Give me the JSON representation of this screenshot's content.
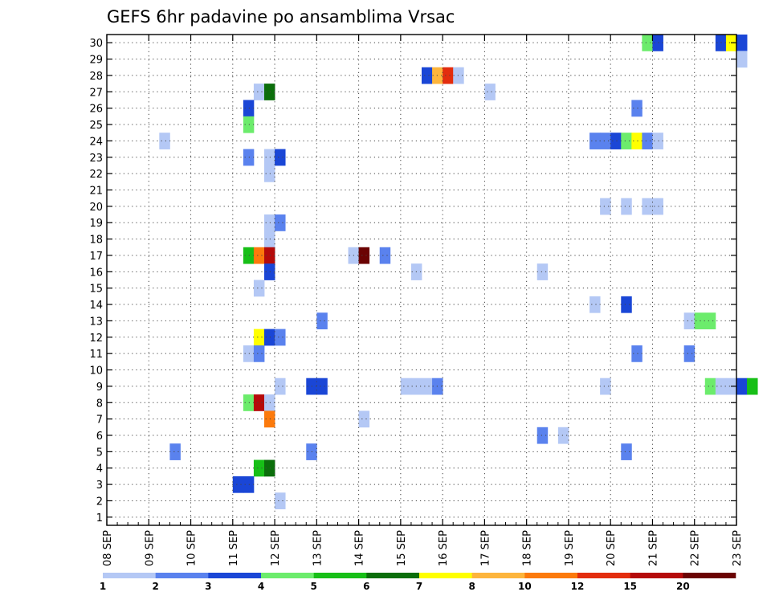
{
  "chart_data": {
    "type": "heatmap",
    "title": "GEFS 6hr padavine po ansamblima Vrsac",
    "xlabel": "",
    "ylabel": "",
    "x_tick_labels": [
      "08 SEP",
      "09 SEP",
      "10 SEP",
      "11 SEP",
      "12 SEP",
      "13 SEP",
      "14 SEP",
      "15 SEP",
      "16 SEP",
      "17 SEP",
      "18 SEP",
      "19 SEP",
      "20 SEP",
      "21 SEP",
      "22 SEP",
      "23 SEP"
    ],
    "y_tick_labels": [
      "1",
      "2",
      "3",
      "4",
      "5",
      "6",
      "7",
      "8",
      "9",
      "10",
      "11",
      "12",
      "13",
      "14",
      "15",
      "16",
      "17",
      "18",
      "19",
      "20",
      "21",
      "22",
      "23",
      "24",
      "25",
      "26",
      "27",
      "28",
      "29",
      "30"
    ],
    "x_range_days": [
      0,
      15
    ],
    "y_range": [
      0,
      30
    ],
    "grid": true,
    "legend_placement": "bottom",
    "color_scale": {
      "labels": [
        "1",
        "2",
        "3",
        "4",
        "5",
        "6",
        "7",
        "8",
        "10",
        "12",
        "15",
        "20"
      ],
      "colors": [
        "#b4c8f5",
        "#5a82ee",
        "#1a46d6",
        "#6cec6c",
        "#17bf17",
        "#0b6e0b",
        "#ffff00",
        "#fdb53c",
        "#fc7a0c",
        "#e32d0e",
        "#b50a0a",
        "#6b0303"
      ]
    },
    "cells": [
      {
        "t": 12.75,
        "m": 30,
        "c": 4
      },
      {
        "t": 13.0,
        "m": 30,
        "c": 3
      },
      {
        "t": 14.5,
        "m": 30,
        "c": 3
      },
      {
        "t": 14.75,
        "m": 30,
        "c": 7
      },
      {
        "t": 15.0,
        "m": 30,
        "c": 3
      },
      {
        "t": 15.0,
        "m": 29,
        "c": 1
      },
      {
        "t": 7.5,
        "m": 28,
        "c": 3
      },
      {
        "t": 7.75,
        "m": 28,
        "c": 8
      },
      {
        "t": 8.0,
        "m": 28,
        "c": 10
      },
      {
        "t": 8.25,
        "m": 28,
        "c": 1
      },
      {
        "t": 3.5,
        "m": 27,
        "c": 1
      },
      {
        "t": 3.75,
        "m": 27,
        "c": 6
      },
      {
        "t": 9.0,
        "m": 27,
        "c": 1
      },
      {
        "t": 3.25,
        "m": 26,
        "c": 3
      },
      {
        "t": 12.5,
        "m": 26,
        "c": 2
      },
      {
        "t": 3.25,
        "m": 25,
        "c": 4
      },
      {
        "t": 1.25,
        "m": 24,
        "c": 1
      },
      {
        "t": 11.5,
        "m": 24,
        "c": 2
      },
      {
        "t": 11.75,
        "m": 24,
        "c": 2
      },
      {
        "t": 12.0,
        "m": 24,
        "c": 3
      },
      {
        "t": 12.25,
        "m": 24,
        "c": 4
      },
      {
        "t": 12.5,
        "m": 24,
        "c": 7
      },
      {
        "t": 12.75,
        "m": 24,
        "c": 2
      },
      {
        "t": 13.0,
        "m": 24,
        "c": 1
      },
      {
        "t": 3.25,
        "m": 23,
        "c": 2
      },
      {
        "t": 3.75,
        "m": 23,
        "c": 1
      },
      {
        "t": 4.0,
        "m": 23,
        "c": 3
      },
      {
        "t": 3.75,
        "m": 22,
        "c": 1
      },
      {
        "t": 11.75,
        "m": 20,
        "c": 1
      },
      {
        "t": 12.25,
        "m": 20,
        "c": 1
      },
      {
        "t": 12.75,
        "m": 20,
        "c": 1
      },
      {
        "t": 13.0,
        "m": 20,
        "c": 1
      },
      {
        "t": 3.75,
        "m": 19,
        "c": 1
      },
      {
        "t": 4.0,
        "m": 19,
        "c": 2
      },
      {
        "t": 3.75,
        "m": 18,
        "c": 1
      },
      {
        "t": 3.25,
        "m": 17,
        "c": 5
      },
      {
        "t": 3.5,
        "m": 17,
        "c": 9
      },
      {
        "t": 3.75,
        "m": 17,
        "c": 11
      },
      {
        "t": 5.75,
        "m": 17,
        "c": 1
      },
      {
        "t": 6.0,
        "m": 17,
        "c": 12
      },
      {
        "t": 6.5,
        "m": 17,
        "c": 2
      },
      {
        "t": 3.75,
        "m": 16,
        "c": 3
      },
      {
        "t": 7.25,
        "m": 16,
        "c": 1
      },
      {
        "t": 10.25,
        "m": 16,
        "c": 1
      },
      {
        "t": 3.5,
        "m": 15,
        "c": 1
      },
      {
        "t": 11.5,
        "m": 14,
        "c": 1
      },
      {
        "t": 12.25,
        "m": 14,
        "c": 3
      },
      {
        "t": 5.0,
        "m": 13,
        "c": 2
      },
      {
        "t": 13.75,
        "m": 13,
        "c": 1
      },
      {
        "t": 14.0,
        "m": 13,
        "c": 4
      },
      {
        "t": 14.25,
        "m": 13,
        "c": 4
      },
      {
        "t": 3.5,
        "m": 12,
        "c": 7
      },
      {
        "t": 3.75,
        "m": 12,
        "c": 3
      },
      {
        "t": 4.0,
        "m": 12,
        "c": 2
      },
      {
        "t": 3.25,
        "m": 11,
        "c": 1
      },
      {
        "t": 3.5,
        "m": 11,
        "c": 2
      },
      {
        "t": 12.5,
        "m": 11,
        "c": 2
      },
      {
        "t": 13.75,
        "m": 11,
        "c": 2
      },
      {
        "t": 4.0,
        "m": 9,
        "c": 1
      },
      {
        "t": 4.75,
        "m": 9,
        "c": 3
      },
      {
        "t": 5.0,
        "m": 9,
        "c": 3
      },
      {
        "t": 7.0,
        "m": 9,
        "c": 1
      },
      {
        "t": 7.25,
        "m": 9,
        "c": 1
      },
      {
        "t": 7.5,
        "m": 9,
        "c": 1
      },
      {
        "t": 7.75,
        "m": 9,
        "c": 2
      },
      {
        "t": 11.75,
        "m": 9,
        "c": 1
      },
      {
        "t": 14.25,
        "m": 9,
        "c": 4
      },
      {
        "t": 14.5,
        "m": 9,
        "c": 1
      },
      {
        "t": 14.75,
        "m": 9,
        "c": 1
      },
      {
        "t": 15.0,
        "m": 9,
        "c": 3
      },
      {
        "t": 15.25,
        "m": 9,
        "c": 5
      },
      {
        "t": 3.25,
        "m": 8,
        "c": 4
      },
      {
        "t": 3.5,
        "m": 8,
        "c": 11
      },
      {
        "t": 3.75,
        "m": 8,
        "c": 1
      },
      {
        "t": 3.75,
        "m": 7,
        "c": 9
      },
      {
        "t": 6.0,
        "m": 7,
        "c": 1
      },
      {
        "t": 10.25,
        "m": 6,
        "c": 2
      },
      {
        "t": 10.75,
        "m": 6,
        "c": 1
      },
      {
        "t": 1.5,
        "m": 5,
        "c": 2
      },
      {
        "t": 4.75,
        "m": 5,
        "c": 2
      },
      {
        "t": 12.25,
        "m": 5,
        "c": 2
      },
      {
        "t": 3.5,
        "m": 4,
        "c": 5
      },
      {
        "t": 3.75,
        "m": 4,
        "c": 6
      },
      {
        "t": 3.0,
        "m": 3,
        "c": 3
      },
      {
        "t": 3.25,
        "m": 3,
        "c": 3
      },
      {
        "t": 4.0,
        "m": 2,
        "c": 1
      }
    ]
  }
}
